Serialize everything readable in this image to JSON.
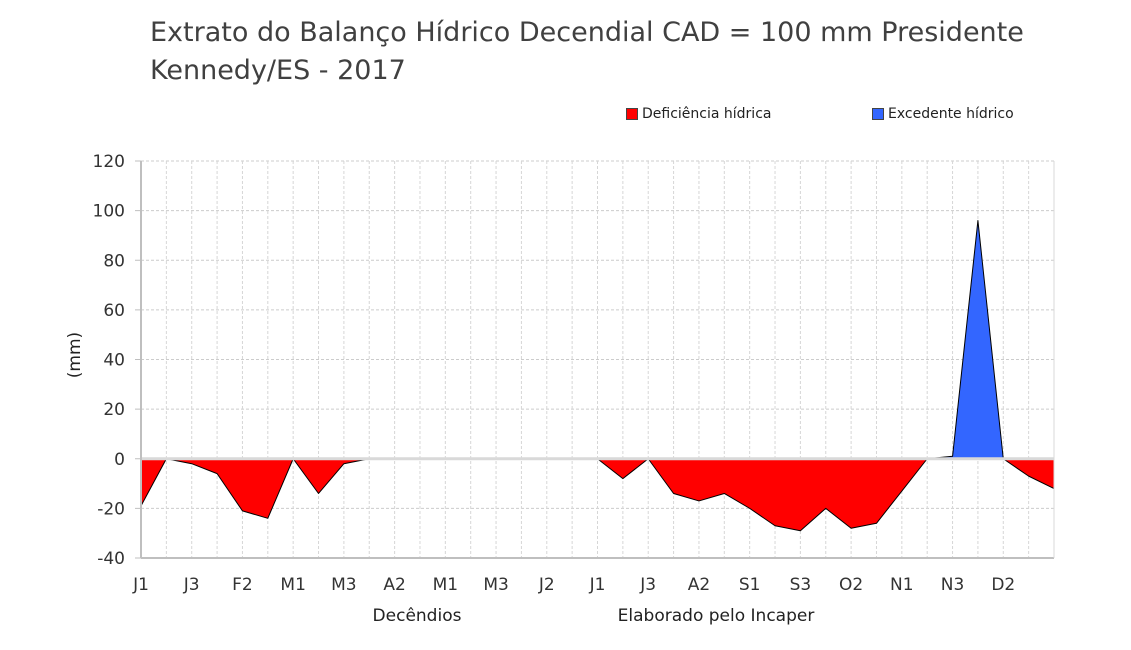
{
  "chart_data": {
    "type": "area",
    "title": "Extrato do Balanço Hídrico Decendial CAD = 100 mm Presidente Kennedy/ES - 2017",
    "xlabel": "Decêndios",
    "ylabel": "(mm)",
    "credit": "Elaborado pelo Incaper",
    "ylim": [
      -40,
      120
    ],
    "yticks": [
      "120",
      "100",
      "80",
      "60",
      "40",
      "20",
      "0",
      "-20",
      "-40"
    ],
    "ytick_values": [
      120,
      100,
      80,
      60,
      40,
      20,
      0,
      -20,
      -40
    ],
    "x_tick_labels": [
      "J1",
      "J3",
      "F2",
      "M1",
      "M3",
      "A2",
      "M1",
      "M3",
      "J2",
      "J1",
      "J3",
      "A2",
      "S1",
      "S3",
      "O2",
      "N1",
      "N3",
      "D2"
    ],
    "grid": true,
    "legend_position": "top-right",
    "series": [
      {
        "name": "Deficiência hídrica",
        "color": "#ff0000",
        "values": [
          -19,
          0,
          -2,
          -6,
          -21,
          -24,
          0,
          -14,
          -2,
          0,
          0,
          0,
          0,
          0,
          0,
          0,
          0,
          0,
          0,
          -8,
          0,
          -14,
          -17,
          -14,
          -20,
          -27,
          -29,
          -20,
          -28,
          -26,
          -13,
          0,
          0,
          0,
          0,
          -7,
          -12
        ]
      },
      {
        "name": "Excedente hídrico",
        "color": "#3366ff",
        "values": [
          0,
          0,
          0,
          0,
          0,
          0,
          0,
          0,
          0,
          0,
          0,
          0,
          0,
          0,
          0,
          0,
          0,
          0,
          0,
          0,
          0,
          0,
          0,
          0,
          0,
          0,
          0,
          0,
          0,
          0,
          0,
          0,
          1,
          96,
          0,
          0,
          0
        ]
      }
    ]
  }
}
